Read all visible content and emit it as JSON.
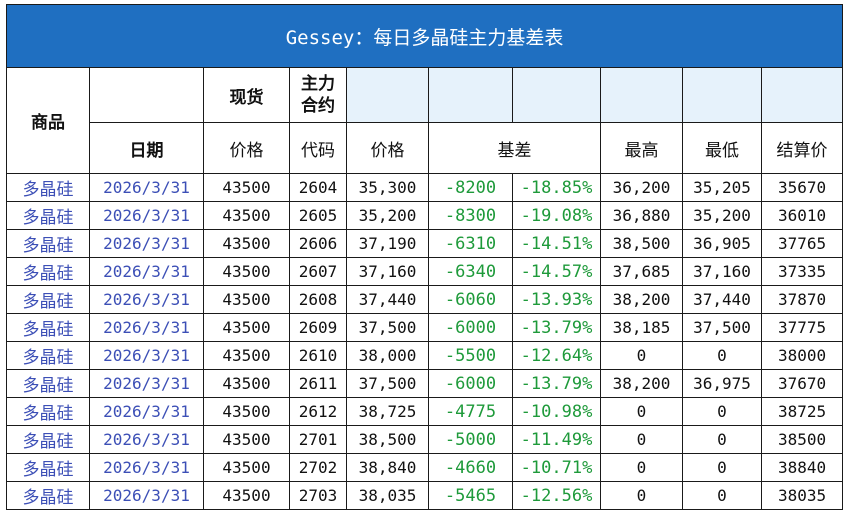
{
  "title": "Gessey：每日多晶硅主力基差表",
  "header": {
    "product": "商品",
    "spot": "现货",
    "main_contract_line1": "主力",
    "main_contract_line2": "合约",
    "date": "日期",
    "price": "价格",
    "code": "代码",
    "fut_price": "价格",
    "basis": "基差",
    "high": "最高",
    "low": "最低",
    "settle": "结算价"
  },
  "rows": [
    {
      "product": "多晶硅",
      "date": "2026/3/31",
      "spot": "43500",
      "code": "2604",
      "price": "35,300",
      "basis": "-8200",
      "basis_pct": "-18.85%",
      "high": "36,200",
      "low": "35,205",
      "settle": "35670"
    },
    {
      "product": "多晶硅",
      "date": "2026/3/31",
      "spot": "43500",
      "code": "2605",
      "price": "35,200",
      "basis": "-8300",
      "basis_pct": "-19.08%",
      "high": "36,880",
      "low": "35,200",
      "settle": "36010"
    },
    {
      "product": "多晶硅",
      "date": "2026/3/31",
      "spot": "43500",
      "code": "2606",
      "price": "37,190",
      "basis": "-6310",
      "basis_pct": "-14.51%",
      "high": "38,500",
      "low": "36,905",
      "settle": "37765"
    },
    {
      "product": "多晶硅",
      "date": "2026/3/31",
      "spot": "43500",
      "code": "2607",
      "price": "37,160",
      "basis": "-6340",
      "basis_pct": "-14.57%",
      "high": "37,685",
      "low": "37,160",
      "settle": "37335"
    },
    {
      "product": "多晶硅",
      "date": "2026/3/31",
      "spot": "43500",
      "code": "2608",
      "price": "37,440",
      "basis": "-6060",
      "basis_pct": "-13.93%",
      "high": "38,200",
      "low": "37,440",
      "settle": "37870"
    },
    {
      "product": "多晶硅",
      "date": "2026/3/31",
      "spot": "43500",
      "code": "2609",
      "price": "37,500",
      "basis": "-6000",
      "basis_pct": "-13.79%",
      "high": "38,185",
      "low": "37,500",
      "settle": "37775"
    },
    {
      "product": "多晶硅",
      "date": "2026/3/31",
      "spot": "43500",
      "code": "2610",
      "price": "38,000",
      "basis": "-5500",
      "basis_pct": "-12.64%",
      "high": "0",
      "low": "0",
      "settle": "38000"
    },
    {
      "product": "多晶硅",
      "date": "2026/3/31",
      "spot": "43500",
      "code": "2611",
      "price": "37,500",
      "basis": "-6000",
      "basis_pct": "-13.79%",
      "high": "38,200",
      "low": "36,975",
      "settle": "37670"
    },
    {
      "product": "多晶硅",
      "date": "2026/3/31",
      "spot": "43500",
      "code": "2612",
      "price": "38,725",
      "basis": "-4775",
      "basis_pct": "-10.98%",
      "high": "0",
      "low": "0",
      "settle": "38725"
    },
    {
      "product": "多晶硅",
      "date": "2026/3/31",
      "spot": "43500",
      "code": "2701",
      "price": "38,500",
      "basis": "-5000",
      "basis_pct": "-11.49%",
      "high": "0",
      "low": "0",
      "settle": "38500"
    },
    {
      "product": "多晶硅",
      "date": "2026/3/31",
      "spot": "43500",
      "code": "2702",
      "price": "38,840",
      "basis": "-4660",
      "basis_pct": "-10.71%",
      "high": "0",
      "low": "0",
      "settle": "38840"
    },
    {
      "product": "多晶硅",
      "date": "2026/3/31",
      "spot": "43500",
      "code": "2703",
      "price": "38,035",
      "basis": "-5465",
      "basis_pct": "-12.56%",
      "high": "0",
      "low": "0",
      "settle": "38035"
    }
  ]
}
